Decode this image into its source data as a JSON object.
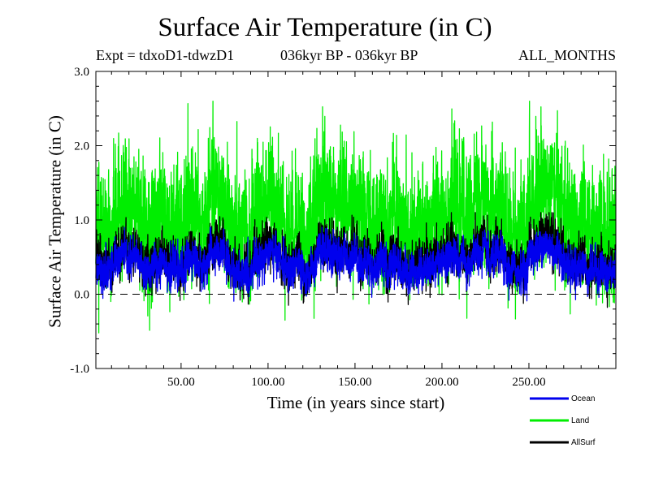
{
  "chart_data": {
    "type": "line",
    "title": "Surface Air Temperature (in C)",
    "expt": "Expt = tdxoD1-tdwzD1",
    "period": "036kyr BP - 036kyr BP",
    "season": "ALL_MONTHS",
    "xlabel": "Time (in years since start)",
    "ylabel": "Surface Air Temperature (in C)",
    "xlim": [
      1,
      300
    ],
    "ylim": [
      -1.0,
      3.0
    ],
    "xticks": [
      50,
      100,
      150,
      200,
      250
    ],
    "xtick_labels": [
      "50.00",
      "100.00",
      "150.00",
      "200.00",
      "250.00"
    ],
    "yticks": [
      -1.0,
      0.0,
      1.0,
      2.0,
      3.0
    ],
    "ytick_labels": [
      "-1.0",
      "0.0",
      "1.0",
      "2.0",
      "3.0"
    ],
    "reference_line": 0.0,
    "samples_per_year": 12,
    "series": [
      {
        "name": "Land",
        "color": "#00ee00",
        "mean": 1.0,
        "annual_sd": 0.2,
        "noise_sd": 0.42,
        "min": -0.7,
        "max": 2.6
      },
      {
        "name": "AllSurf",
        "color": "#000000",
        "mean": 0.48,
        "annual_sd": 0.12,
        "noise_sd": 0.16,
        "min": -0.2,
        "max": 1.1
      },
      {
        "name": "Ocean",
        "color": "#0000ee",
        "mean": 0.4,
        "annual_sd": 0.1,
        "noise_sd": 0.13,
        "min": -0.3,
        "max": 0.9
      }
    ],
    "legend": [
      {
        "label": "Ocean",
        "color": "#0000ee"
      },
      {
        "label": "Land",
        "color": "#00ee00"
      },
      {
        "label": "AllSurf",
        "color": "#000000"
      }
    ]
  }
}
